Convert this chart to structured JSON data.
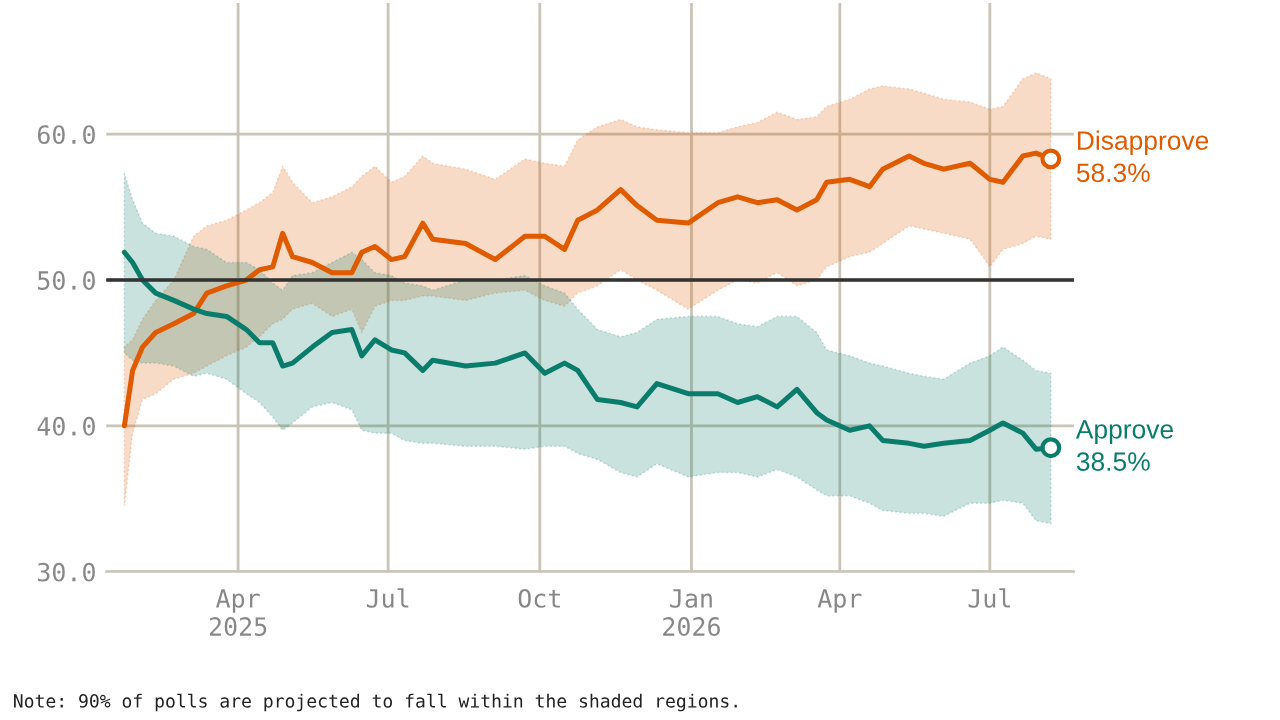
{
  "chart_data": {
    "type": "line",
    "x": [
      "2025-01-22",
      "2025-01-27",
      "2025-02-02",
      "2025-02-10",
      "2025-02-21",
      "2025-03-05",
      "2025-03-13",
      "2025-03-25",
      "2025-04-06",
      "2025-04-14",
      "2025-04-22",
      "2025-04-28",
      "2025-05-04",
      "2025-05-16",
      "2025-05-28",
      "2025-06-09",
      "2025-06-15",
      "2025-06-23",
      "2025-07-03",
      "2025-07-11",
      "2025-07-22",
      "2025-07-28",
      "2025-08-17",
      "2025-09-04",
      "2025-09-22",
      "2025-10-04",
      "2025-10-16",
      "2025-10-24",
      "2025-11-05",
      "2025-11-19",
      "2025-11-29",
      "2025-12-11",
      "2025-12-30",
      "2026-01-17",
      "2026-01-29",
      "2026-02-10",
      "2026-02-22",
      "2026-03-06",
      "2026-03-18",
      "2026-03-24",
      "2026-04-07",
      "2026-04-19",
      "2026-04-27",
      "2026-05-13",
      "2026-05-22",
      "2026-06-03",
      "2026-06-19",
      "2026-07-01",
      "2026-07-09",
      "2026-07-21",
      "2026-07-29",
      "2026-08-07"
    ],
    "series": [
      {
        "name": "Disapprove",
        "color": "#e05a00",
        "values": [
          40.0,
          43.8,
          45.4,
          46.4,
          47.0,
          47.7,
          49.1,
          49.6,
          50.0,
          50.7,
          50.9,
          53.2,
          51.6,
          51.2,
          50.5,
          50.5,
          51.9,
          52.3,
          51.4,
          51.6,
          53.9,
          52.8,
          52.5,
          51.4,
          53.0,
          53.0,
          52.1,
          54.1,
          54.8,
          56.2,
          55.1,
          54.1,
          53.9,
          55.3,
          55.7,
          55.3,
          55.5,
          54.8,
          55.5,
          56.7,
          56.9,
          56.4,
          57.6,
          58.5,
          58.0,
          57.6,
          58.0,
          56.9,
          56.7,
          58.5,
          58.7,
          58.3
        ],
        "upper": [
          45.4,
          45.9,
          47.3,
          48.6,
          50.0,
          53.0,
          53.7,
          54.1,
          54.8,
          55.3,
          56.0,
          57.8,
          56.7,
          55.3,
          55.7,
          56.4,
          57.1,
          57.8,
          56.7,
          57.1,
          58.5,
          58.0,
          57.6,
          56.9,
          58.3,
          58.0,
          57.8,
          59.6,
          60.5,
          61.0,
          60.5,
          60.3,
          60.1,
          60.1,
          60.5,
          60.8,
          61.5,
          61.0,
          61.2,
          61.9,
          62.4,
          63.1,
          63.3,
          63.1,
          62.8,
          62.4,
          62.2,
          61.7,
          61.9,
          63.8,
          64.2,
          63.8
        ],
        "lower": [
          34.5,
          39.5,
          41.8,
          42.2,
          43.2,
          43.6,
          44.1,
          44.8,
          45.4,
          46.1,
          47.0,
          47.3,
          48.0,
          48.4,
          47.5,
          48.0,
          46.4,
          48.2,
          48.6,
          48.6,
          48.9,
          48.9,
          48.6,
          49.1,
          49.3,
          48.6,
          48.2,
          49.1,
          49.6,
          50.7,
          50.0,
          49.3,
          48.0,
          49.3,
          50.0,
          49.8,
          50.5,
          49.6,
          50.0,
          50.9,
          51.6,
          51.9,
          52.5,
          53.7,
          53.5,
          53.2,
          52.8,
          50.9,
          52.1,
          52.5,
          53.0,
          52.8
        ],
        "value_labels": [
          null,
          null,
          null,
          null,
          null,
          null,
          null,
          null,
          null,
          null,
          null,
          null,
          null,
          null,
          null,
          null,
          null,
          null,
          null,
          null,
          null,
          null,
          null,
          null,
          null,
          null,
          null,
          null,
          null,
          null,
          null,
          null,
          null,
          null,
          null,
          null,
          null,
          null,
          null,
          null,
          null,
          null,
          null,
          null,
          null,
          null,
          null,
          null,
          null,
          null,
          null,
          "58.3%"
        ]
      },
      {
        "name": "Approve",
        "color": "#0a7c6b",
        "values": [
          51.9,
          51.2,
          50.0,
          49.1,
          48.6,
          48.0,
          47.7,
          47.5,
          46.6,
          45.7,
          45.7,
          44.1,
          44.3,
          45.4,
          46.4,
          46.6,
          44.8,
          45.9,
          45.2,
          45.0,
          43.8,
          44.5,
          44.1,
          44.3,
          45.0,
          43.6,
          44.3,
          43.8,
          41.8,
          41.6,
          41.3,
          42.9,
          42.2,
          42.2,
          41.6,
          42.0,
          41.3,
          42.5,
          40.9,
          40.4,
          39.7,
          40.0,
          39.0,
          38.8,
          38.6,
          38.8,
          39.0,
          39.7,
          40.2,
          39.5,
          38.4,
          38.5
        ],
        "upper": [
          57.3,
          55.5,
          53.9,
          53.2,
          53.0,
          52.3,
          52.1,
          51.2,
          51.2,
          50.7,
          49.8,
          49.3,
          50.3,
          50.5,
          51.2,
          51.9,
          51.4,
          50.5,
          50.3,
          49.8,
          49.6,
          49.3,
          50.0,
          50.0,
          50.3,
          49.6,
          49.1,
          48.0,
          46.6,
          46.1,
          46.4,
          47.3,
          47.5,
          47.5,
          47.0,
          46.8,
          47.5,
          47.5,
          46.4,
          45.2,
          44.8,
          44.3,
          44.1,
          43.6,
          43.4,
          43.2,
          44.3,
          44.8,
          45.4,
          44.5,
          43.8,
          43.6
        ],
        "lower": [
          45.0,
          44.5,
          44.3,
          44.3,
          44.1,
          43.4,
          43.6,
          43.2,
          42.2,
          41.6,
          40.6,
          39.7,
          40.2,
          41.3,
          41.6,
          41.1,
          39.7,
          39.5,
          39.5,
          39.0,
          38.8,
          38.8,
          38.6,
          38.6,
          38.4,
          38.6,
          38.6,
          38.1,
          37.7,
          36.8,
          36.5,
          37.4,
          36.5,
          36.8,
          36.8,
          36.5,
          37.0,
          36.5,
          35.6,
          35.2,
          35.2,
          34.7,
          34.2,
          34.0,
          34.0,
          33.8,
          34.7,
          34.7,
          34.9,
          34.7,
          33.5,
          33.3
        ],
        "value_labels": [
          null,
          null,
          null,
          null,
          null,
          null,
          null,
          null,
          null,
          null,
          null,
          null,
          null,
          null,
          null,
          null,
          null,
          null,
          null,
          null,
          null,
          null,
          null,
          null,
          null,
          null,
          null,
          null,
          null,
          null,
          null,
          null,
          null,
          null,
          null,
          null,
          null,
          null,
          null,
          null,
          null,
          null,
          null,
          null,
          null,
          null,
          null,
          null,
          null,
          null,
          null,
          "38.5%"
        ]
      }
    ],
    "xlim": [
      "2025-01-11",
      "2026-08-21"
    ],
    "xticks": [
      {
        "value": "2025-04-01",
        "label": "Apr\n2025"
      },
      {
        "value": "2025-07-01",
        "label": "Jul"
      },
      {
        "value": "2025-10-01",
        "label": "Oct"
      },
      {
        "value": "2026-01-01",
        "label": "Jan\n2026"
      },
      {
        "value": "2026-04-01",
        "label": "Apr"
      },
      {
        "value": "2026-07-01",
        "label": "Jul"
      }
    ],
    "ylim": [
      30,
      69
    ],
    "yticks": [
      {
        "value": 30,
        "label": "30.0"
      },
      {
        "value": 40,
        "label": "40.0"
      },
      {
        "value": 50,
        "label": "50.0"
      },
      {
        "value": 60,
        "label": "60.0"
      }
    ],
    "ref_lines": [
      {
        "axis": "y",
        "value": 50,
        "label": null,
        "color": "#333333"
      }
    ],
    "grid": true,
    "legend": false,
    "line_style": "solid",
    "annotations": [
      "Note: 90% of polls are projected to fall within the shaded regions."
    ]
  }
}
